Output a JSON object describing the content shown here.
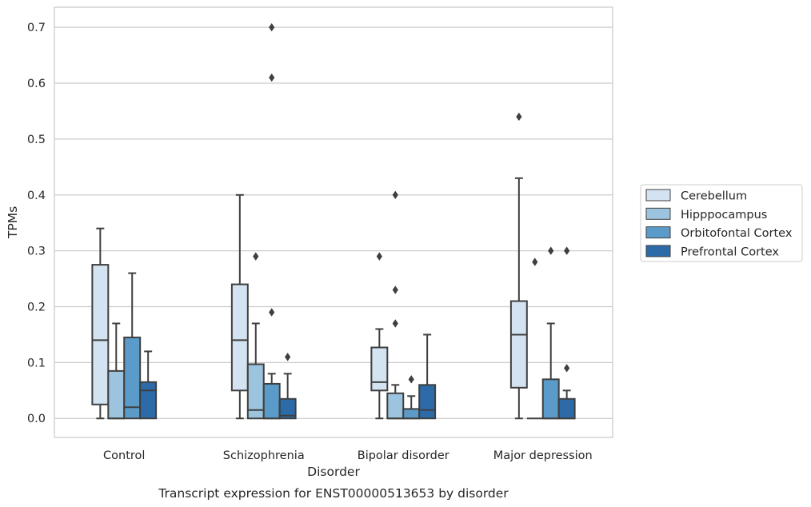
{
  "chart_data": {
    "type": "box",
    "caption": "Transcript expression for ENST00000513653 by disorder",
    "xlabel": "Disorder",
    "ylabel": "TPMs",
    "ylim": [
      -0.034,
      0.736
    ],
    "yticks": [
      "0.0",
      "0.1",
      "0.2",
      "0.3",
      "0.4",
      "0.5",
      "0.6",
      "0.7"
    ],
    "ytick_values": [
      0.0,
      0.1,
      0.2,
      0.3,
      0.4,
      0.5,
      0.6,
      0.7
    ],
    "grid": true,
    "legend_position": "right",
    "categories": [
      "Control",
      "Schizophrenia",
      "Bipolar disorder",
      "Major depression"
    ],
    "series": [
      {
        "name": "Cerebellum",
        "color": "#d4e3f1",
        "boxes": [
          {
            "whislo": 0.0,
            "q1": 0.025,
            "med": 0.14,
            "q3": 0.275,
            "whishi": 0.34,
            "fliers": []
          },
          {
            "whislo": 0.0,
            "q1": 0.05,
            "med": 0.14,
            "q3": 0.24,
            "whishi": 0.4,
            "fliers": []
          },
          {
            "whislo": 0.0,
            "q1": 0.05,
            "med": 0.065,
            "q3": 0.127,
            "whishi": 0.16,
            "fliers": [
              0.29
            ]
          },
          {
            "whislo": 0.0,
            "q1": 0.055,
            "med": 0.15,
            "q3": 0.21,
            "whishi": 0.43,
            "fliers": [
              0.54
            ]
          }
        ]
      },
      {
        "name": "Hipppocampus",
        "color": "#9dc4de",
        "boxes": [
          {
            "whislo": 0.0,
            "q1": 0.0,
            "med": 0.0,
            "q3": 0.085,
            "whishi": 0.17,
            "fliers": []
          },
          {
            "whislo": 0.0,
            "q1": 0.0,
            "med": 0.015,
            "q3": 0.097,
            "whishi": 0.17,
            "fliers": [
              0.29
            ]
          },
          {
            "whislo": 0.0,
            "q1": 0.0,
            "med": 0.0,
            "q3": 0.045,
            "whishi": 0.06,
            "fliers": [
              0.17,
              0.23,
              0.4
            ]
          },
          {
            "whislo": 0.0,
            "q1": 0.0,
            "med": 0.0,
            "q3": 0.0,
            "whishi": 0.0,
            "fliers": [
              0.28
            ]
          }
        ]
      },
      {
        "name": "Orbitofontal Cortex",
        "color": "#5b9bc9",
        "boxes": [
          {
            "whislo": 0.0,
            "q1": 0.0,
            "med": 0.02,
            "q3": 0.145,
            "whishi": 0.26,
            "fliers": []
          },
          {
            "whislo": 0.0,
            "q1": 0.0,
            "med": 0.0,
            "q3": 0.062,
            "whishi": 0.08,
            "fliers": [
              0.19,
              0.61,
              0.7
            ]
          },
          {
            "whislo": 0.0,
            "q1": 0.0,
            "med": 0.0,
            "q3": 0.017,
            "whishi": 0.04,
            "fliers": [
              0.07
            ]
          },
          {
            "whislo": 0.0,
            "q1": 0.0,
            "med": 0.0,
            "q3": 0.07,
            "whishi": 0.17,
            "fliers": [
              0.3
            ]
          }
        ]
      },
      {
        "name": "Prefrontal Cortex",
        "color": "#2c6ba8",
        "boxes": [
          {
            "whislo": 0.0,
            "q1": 0.0,
            "med": 0.05,
            "q3": 0.065,
            "whishi": 0.12,
            "fliers": []
          },
          {
            "whislo": 0.0,
            "q1": 0.0,
            "med": 0.005,
            "q3": 0.035,
            "whishi": 0.08,
            "fliers": [
              0.11
            ]
          },
          {
            "whislo": 0.0,
            "q1": 0.0,
            "med": 0.015,
            "q3": 0.06,
            "whishi": 0.15,
            "fliers": []
          },
          {
            "whislo": 0.0,
            "q1": 0.0,
            "med": 0.0,
            "q3": 0.035,
            "whishi": 0.05,
            "fliers": [
              0.09,
              0.3
            ]
          }
        ]
      }
    ]
  }
}
